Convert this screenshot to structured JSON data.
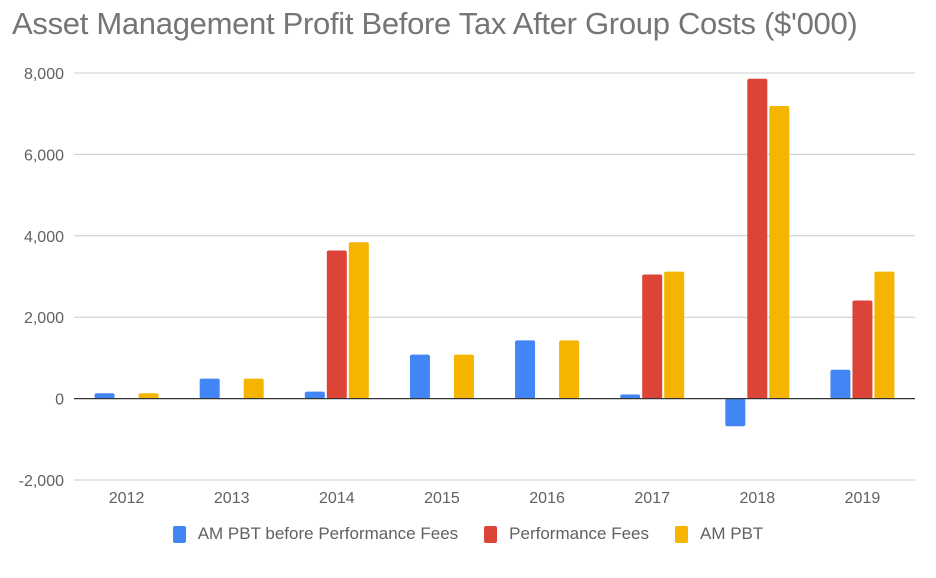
{
  "chart_data": {
    "type": "bar",
    "title": "Asset Management Profit Before Tax After Group Costs ($'000)",
    "xlabel": "",
    "ylabel": "",
    "categories": [
      "2012",
      "2013",
      "2014",
      "2015",
      "2016",
      "2017",
      "2018",
      "2019"
    ],
    "series": [
      {
        "name": "AM PBT before Performance Fees",
        "color": "#4285f4",
        "values": [
          130,
          490,
          170,
          1080,
          1430,
          100,
          -680,
          710
        ]
      },
      {
        "name": "Performance Fees",
        "color": "#db4437",
        "values": [
          0,
          0,
          3640,
          0,
          0,
          3050,
          7860,
          2410
        ]
      },
      {
        "name": "AM PBT",
        "color": "#f4b400",
        "values": [
          130,
          490,
          3840,
          1080,
          1430,
          3120,
          7190,
          3120
        ]
      }
    ],
    "ylim": [
      -2000,
      8000
    ],
    "yticks": [
      -2000,
      0,
      2000,
      4000,
      6000,
      8000
    ],
    "ytick_labels": [
      "-2,000",
      "0",
      "2,000",
      "4,000",
      "6,000",
      "8,000"
    ],
    "grid": true,
    "legend_position": "bottom"
  }
}
